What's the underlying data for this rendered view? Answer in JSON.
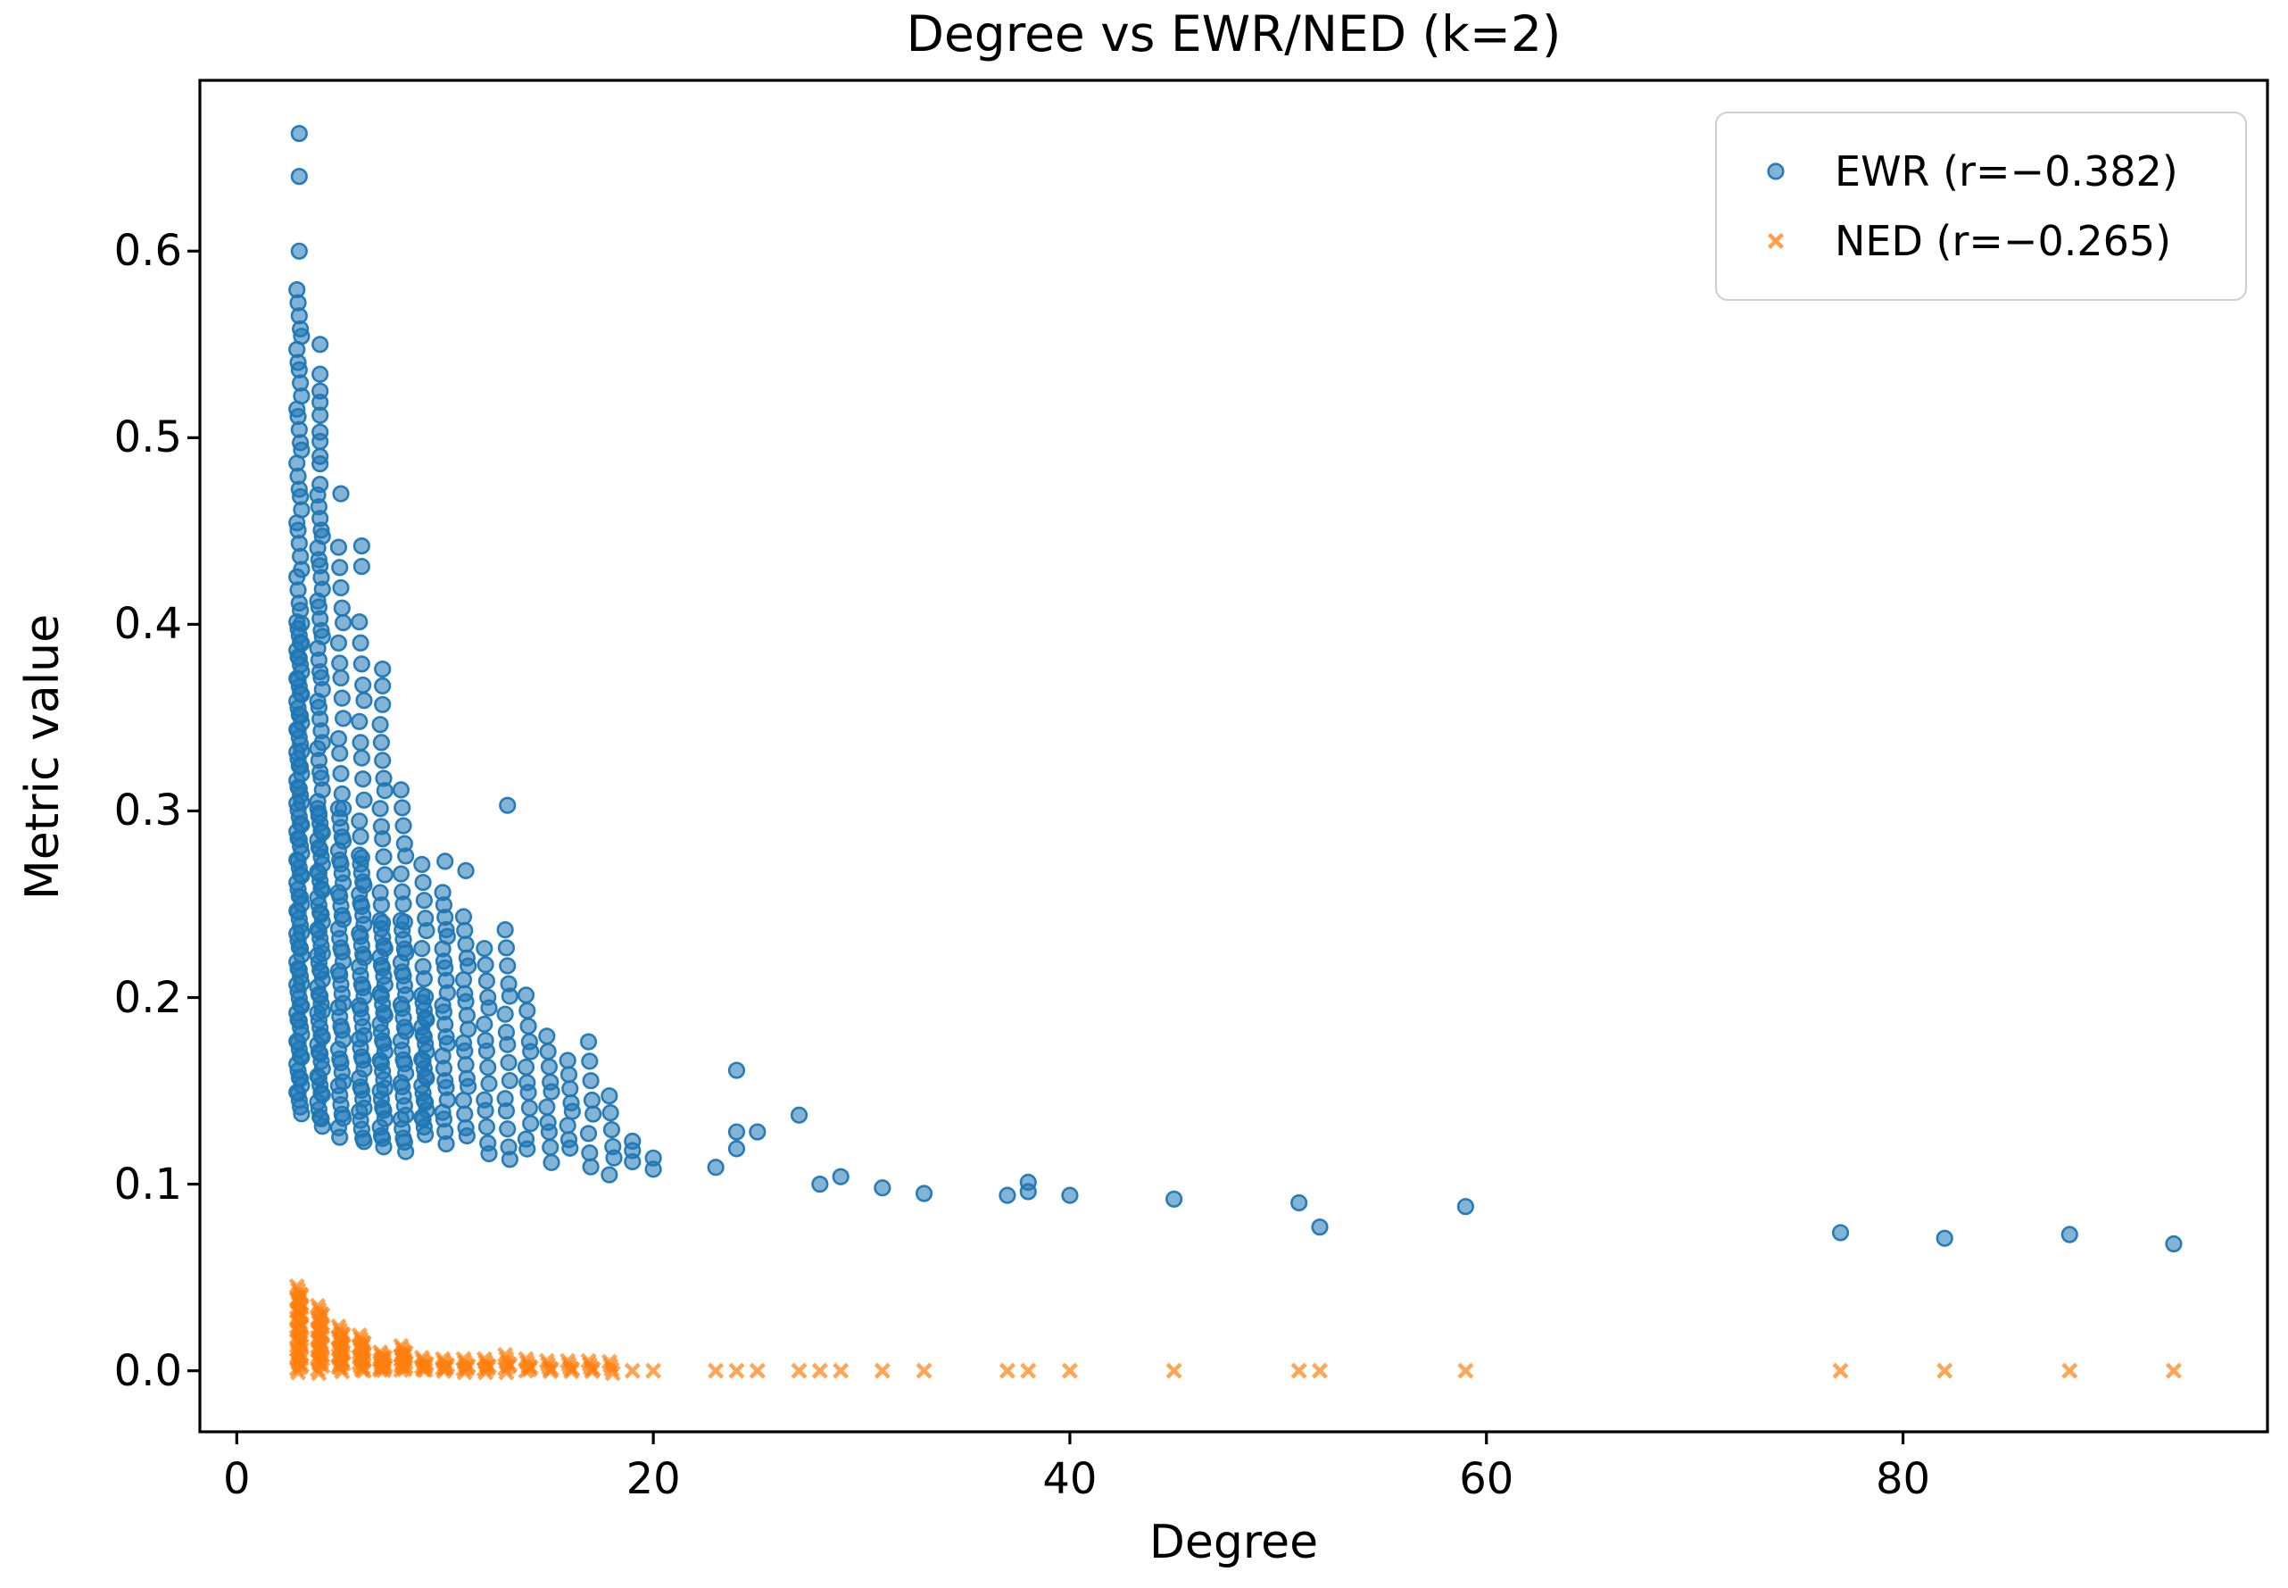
{
  "figure": {
    "title": "Degree vs EWR/NED (k=2)",
    "xlabel": "Degree",
    "ylabel": "Metric value",
    "background": "#ffffff",
    "spine_color": "#000000"
  },
  "legend": {
    "position": "upper right",
    "entries": [
      {
        "label": "EWR (r=−0.382)",
        "marker": "circle-marker",
        "color": "#1f77b4"
      },
      {
        "label": "NED (r=−0.265)",
        "marker": "x-marker",
        "color": "#ff7f0e"
      }
    ]
  },
  "chart_data": {
    "type": "scatter",
    "title": "Degree vs EWR/NED (k=2)",
    "xlabel": "Degree",
    "ylabel": "Metric value",
    "xlim": [
      -1.77,
      97.5
    ],
    "ylim": [
      -0.0327,
      0.6915
    ],
    "grid": false,
    "legend_position": "upper right",
    "xticks": [
      {
        "v": 0,
        "label": "0"
      },
      {
        "v": 20,
        "label": "20"
      },
      {
        "v": 40,
        "label": "40"
      },
      {
        "v": 60,
        "label": "60"
      },
      {
        "v": 80,
        "label": "80"
      }
    ],
    "yticks": [
      {
        "v": 0.0,
        "label": "0.0"
      },
      {
        "v": 0.1,
        "label": "0.1"
      },
      {
        "v": 0.2,
        "label": "0.2"
      },
      {
        "v": 0.3,
        "label": "0.3"
      },
      {
        "v": 0.4,
        "label": "0.4"
      },
      {
        "v": 0.5,
        "label": "0.5"
      },
      {
        "v": 0.6,
        "label": "0.6"
      }
    ],
    "series": [
      {
        "name": "EWR (r=−0.382)",
        "marker": "circle",
        "color": "#1f77b4",
        "alpha": 0.6,
        "points": [
          [
            3,
            0.663
          ],
          [
            3,
            0.64
          ],
          [
            3,
            0.6
          ],
          [
            4,
            0.55
          ],
          [
            4,
            0.534
          ],
          [
            4,
            0.525
          ],
          [
            4,
            0.519
          ],
          [
            4,
            0.512
          ],
          [
            4,
            0.503
          ],
          [
            4,
            0.498
          ],
          [
            4,
            0.49
          ],
          [
            4,
            0.486
          ],
          [
            4,
            0.475
          ],
          [
            5,
            0.47
          ],
          [
            6,
            0.442
          ],
          [
            6,
            0.431
          ],
          [
            7,
            0.376
          ],
          [
            7,
            0.367
          ],
          [
            7,
            0.357
          ],
          [
            10,
            0.273
          ],
          [
            11,
            0.268
          ],
          [
            13,
            0.303
          ],
          [
            19,
            0.123
          ],
          [
            19,
            0.118
          ],
          [
            19,
            0.112
          ],
          [
            20,
            0.114
          ],
          [
            20,
            0.108
          ],
          [
            23,
            0.109
          ],
          [
            24,
            0.161
          ],
          [
            24,
            0.128
          ],
          [
            24,
            0.119
          ],
          [
            25,
            0.128
          ],
          [
            27,
            0.137
          ],
          [
            28,
            0.1
          ],
          [
            29,
            0.104
          ],
          [
            31,
            0.098
          ],
          [
            33,
            0.095
          ],
          [
            37,
            0.094
          ],
          [
            38,
            0.101
          ],
          [
            38,
            0.096
          ],
          [
            40,
            0.094
          ],
          [
            45,
            0.092
          ],
          [
            51,
            0.09
          ],
          [
            52,
            0.077
          ],
          [
            59,
            0.088
          ],
          [
            77,
            0.074
          ],
          [
            82,
            0.071
          ],
          [
            88,
            0.073
          ],
          [
            93,
            0.068
          ]
        ],
        "dense_bands_x_vmin_vmax_count": [
          [
            3,
            0.4,
            0.578,
            30
          ],
          [
            3,
            0.139,
            0.4,
            95
          ],
          [
            4,
            0.3,
            0.468,
            32
          ],
          [
            4,
            0.131,
            0.3,
            55
          ],
          [
            5,
            0.3,
            0.44,
            15
          ],
          [
            5,
            0.126,
            0.3,
            42
          ],
          [
            6,
            0.275,
            0.4,
            13
          ],
          [
            6,
            0.122,
            0.275,
            40
          ],
          [
            7,
            0.24,
            0.345,
            13
          ],
          [
            7,
            0.12,
            0.24,
            34
          ],
          [
            8,
            0.24,
            0.31,
            9
          ],
          [
            8,
            0.117,
            0.24,
            30
          ],
          [
            9,
            0.2,
            0.27,
            9
          ],
          [
            9,
            0.127,
            0.2,
            24
          ],
          [
            10,
            0.122,
            0.255,
            24
          ],
          [
            11,
            0.125,
            0.242,
            19
          ],
          [
            12,
            0.115,
            0.225,
            15
          ],
          [
            13,
            0.112,
            0.235,
            15
          ],
          [
            14,
            0.118,
            0.2,
            12
          ],
          [
            15,
            0.112,
            0.178,
            10
          ],
          [
            16,
            0.118,
            0.165,
            8
          ],
          [
            17,
            0.108,
            0.175,
            8
          ],
          [
            18,
            0.105,
            0.146,
            6
          ]
        ]
      },
      {
        "name": "NED (r=−0.265)",
        "marker": "x",
        "color": "#ff7f0e",
        "alpha": 0.7,
        "points": [
          [
            19,
            0.0
          ],
          [
            20,
            0.0
          ],
          [
            23,
            0.0
          ],
          [
            24,
            0.0
          ],
          [
            25,
            0.0
          ],
          [
            27,
            0.0
          ],
          [
            28,
            0.0
          ],
          [
            29,
            0.0
          ],
          [
            31,
            0.0
          ],
          [
            33,
            0.0
          ],
          [
            37,
            0.0
          ],
          [
            38,
            0.0
          ],
          [
            40,
            0.0
          ],
          [
            45,
            0.0
          ],
          [
            51,
            0.0
          ],
          [
            52,
            0.0
          ],
          [
            59,
            0.0
          ],
          [
            77,
            0.0
          ],
          [
            82,
            0.0
          ],
          [
            88,
            0.0
          ],
          [
            93,
            0.0
          ]
        ],
        "dense_bands_x_vmin_vmax_count": [
          [
            3,
            0.0,
            0.044,
            42
          ],
          [
            4,
            0.0,
            0.0335,
            32
          ],
          [
            5,
            0.0,
            0.0225,
            24
          ],
          [
            6,
            0.0,
            0.0177,
            20
          ],
          [
            7,
            0.0,
            0.0086,
            16
          ],
          [
            8,
            0.0,
            0.012,
            16
          ],
          [
            9,
            0.0,
            0.0057,
            9
          ],
          [
            10,
            0.0,
            0.005,
            8
          ],
          [
            11,
            0.0,
            0.005,
            7
          ],
          [
            12,
            0.0,
            0.005,
            7
          ],
          [
            13,
            0.0,
            0.0072,
            7
          ],
          [
            14,
            0.0,
            0.005,
            6
          ],
          [
            15,
            0.0,
            0.004,
            5
          ],
          [
            16,
            0.0,
            0.004,
            5
          ],
          [
            17,
            0.0,
            0.004,
            5
          ],
          [
            18,
            0.0,
            0.0035,
            4
          ]
        ]
      }
    ]
  }
}
